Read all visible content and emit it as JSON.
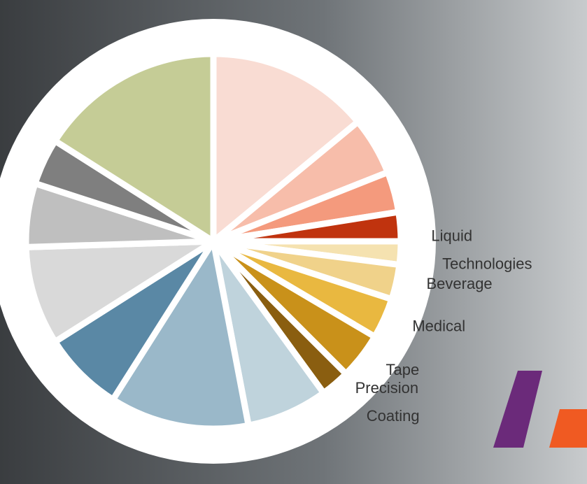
{
  "chart_data": {
    "type": "pie",
    "categories": [
      null,
      null,
      null,
      null,
      "Liquid Technologies",
      "Beverage",
      "Medical",
      "Tape",
      "Precision Coating",
      null,
      null,
      null,
      null,
      null,
      null,
      null
    ],
    "values": [
      14,
      5,
      3.5,
      2.5,
      2,
      3,
      3.5,
      4,
      2.5,
      7,
      12,
      7,
      8.5,
      5.5,
      4,
      16
    ],
    "colors": [
      "#f9dcd3",
      "#f7bdaa",
      "#f49a7d",
      "#c0330e",
      "#f5e2b0",
      "#f0d28a",
      "#e9b840",
      "#c9911a",
      "#8a5e10",
      "#bfd3dc",
      "#9ab8c9",
      "#5a88a5",
      "#d9d9d9",
      "#bfbfbf",
      "#7f7f7f",
      "#c5cc96"
    ]
  }
}
